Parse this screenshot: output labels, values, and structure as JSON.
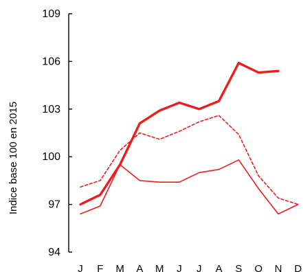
{
  "chart_data": {
    "type": "line",
    "title": "",
    "xlabel": "",
    "ylabel": "Indice base 100 en 2015",
    "ylim": [
      94,
      109
    ],
    "yticks": [
      94,
      97,
      100,
      103,
      106,
      109
    ],
    "categories": [
      "J",
      "F",
      "M",
      "A",
      "M",
      "J",
      "J",
      "A",
      "S",
      "O",
      "N",
      "D"
    ],
    "grid": false,
    "legend": "none",
    "series": [
      {
        "style": "solid-thick",
        "color": "#ee1c1c",
        "values": [
          97.0,
          97.6,
          99.5,
          102.1,
          102.9,
          103.4,
          103.0,
          103.5,
          105.9,
          105.3,
          105.4,
          null
        ]
      },
      {
        "style": "dashed",
        "color": "#ee1c1c",
        "values": [
          98.1,
          98.5,
          100.4,
          101.5,
          101.1,
          101.6,
          102.2,
          102.6,
          101.4,
          98.8,
          97.4,
          97.0
        ]
      },
      {
        "style": "solid-thin",
        "color": "#ee1c1c",
        "values": [
          96.4,
          96.9,
          99.5,
          98.5,
          98.4,
          98.4,
          99.0,
          99.2,
          99.8,
          98.0,
          96.4,
          97.0
        ]
      }
    ]
  }
}
